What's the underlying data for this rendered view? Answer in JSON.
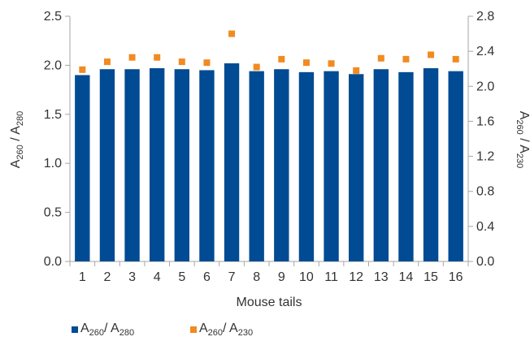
{
  "chart_data": {
    "type": "bar",
    "xlabel": "Mouse tails",
    "categories": [
      "1",
      "2",
      "3",
      "4",
      "5",
      "6",
      "7",
      "8",
      "9",
      "10",
      "11",
      "12",
      "13",
      "14",
      "15",
      "16"
    ],
    "series": [
      {
        "name": "A260 / A280",
        "name_parts": [
          "A",
          "260",
          "/ A",
          "280"
        ],
        "type": "bar",
        "axis": "left",
        "color": "#004b93",
        "values": [
          1.9,
          1.96,
          1.96,
          1.97,
          1.96,
          1.95,
          2.02,
          1.94,
          1.96,
          1.93,
          1.94,
          1.91,
          1.96,
          1.93,
          1.97,
          1.94
        ]
      },
      {
        "name": "A260 / A230",
        "name_parts": [
          "A",
          "260",
          "/ A",
          "230"
        ],
        "type": "scatter",
        "axis": "right",
        "color": "#f18a21",
        "values": [
          2.19,
          2.28,
          2.33,
          2.33,
          2.28,
          2.27,
          2.6,
          2.22,
          2.31,
          2.27,
          2.26,
          2.18,
          2.32,
          2.31,
          2.36,
          2.31
        ]
      }
    ],
    "left_axis": {
      "label_parts": [
        "A",
        "260",
        " / A",
        "280"
      ],
      "ylim": [
        0,
        2.5
      ],
      "ticks": [
        "0.0",
        "0.5",
        "1.0",
        "1.5",
        "2.0",
        "2.5"
      ]
    },
    "right_axis": {
      "label_parts": [
        "A",
        "260",
        " / A",
        "230"
      ],
      "ylim": [
        0,
        2.8
      ],
      "ticks": [
        "0.0",
        "0.4",
        "0.8",
        "1.2",
        "1.6",
        "2.0",
        "2.4",
        "2.8"
      ]
    },
    "grid": false,
    "legend_position": "bottom-left"
  }
}
